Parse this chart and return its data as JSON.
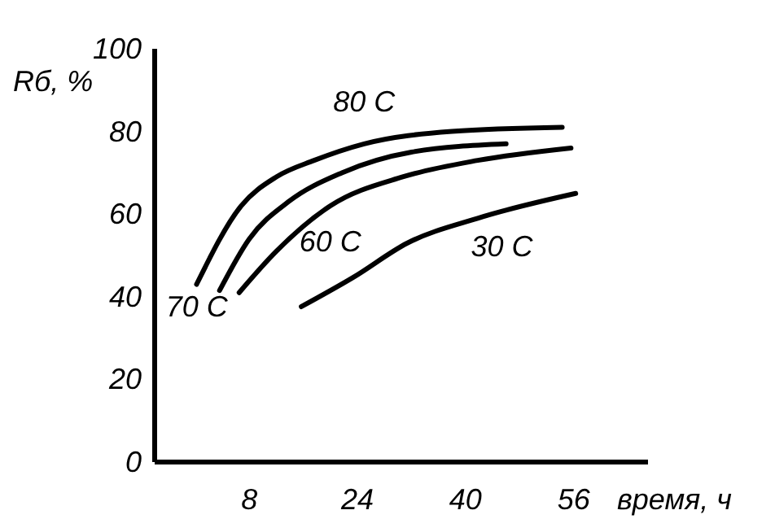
{
  "chart_data": {
    "type": "line",
    "xlabel": "время, ч",
    "ylabel": "Rб, %",
    "xlim": [
      -6,
      67
    ],
    "ylim": [
      0,
      100
    ],
    "xticks": [
      8,
      24,
      40,
      56
    ],
    "yticks": [
      0,
      20,
      40,
      60,
      80,
      100
    ],
    "grid": false,
    "marker": "none",
    "line_style": "solid",
    "series": [
      {
        "name": "80 C",
        "color": "#000000",
        "x": [
          0.2,
          6.8,
          12,
          17.6,
          25,
          38,
          54.3
        ],
        "values": [
          43,
          62,
          69,
          73,
          77,
          80,
          81
        ]
      },
      {
        "name": "70 C",
        "color": "#000000",
        "x": [
          3.6,
          8,
          13.8,
          21.7,
          32,
          46
        ],
        "values": [
          41.5,
          54,
          63,
          70,
          75,
          77
        ]
      },
      {
        "name": "60 C",
        "color": "#000000",
        "x": [
          6.5,
          12,
          20,
          30.7,
          41.8,
          55.6
        ],
        "values": [
          41,
          51,
          62,
          69,
          73,
          76
        ]
      },
      {
        "name": "30 C",
        "color": "#000000",
        "x": [
          15.7,
          23.4,
          31.4,
          41.8,
          56.3
        ],
        "values": [
          37.6,
          44.7,
          53,
          59,
          65
        ]
      }
    ]
  }
}
